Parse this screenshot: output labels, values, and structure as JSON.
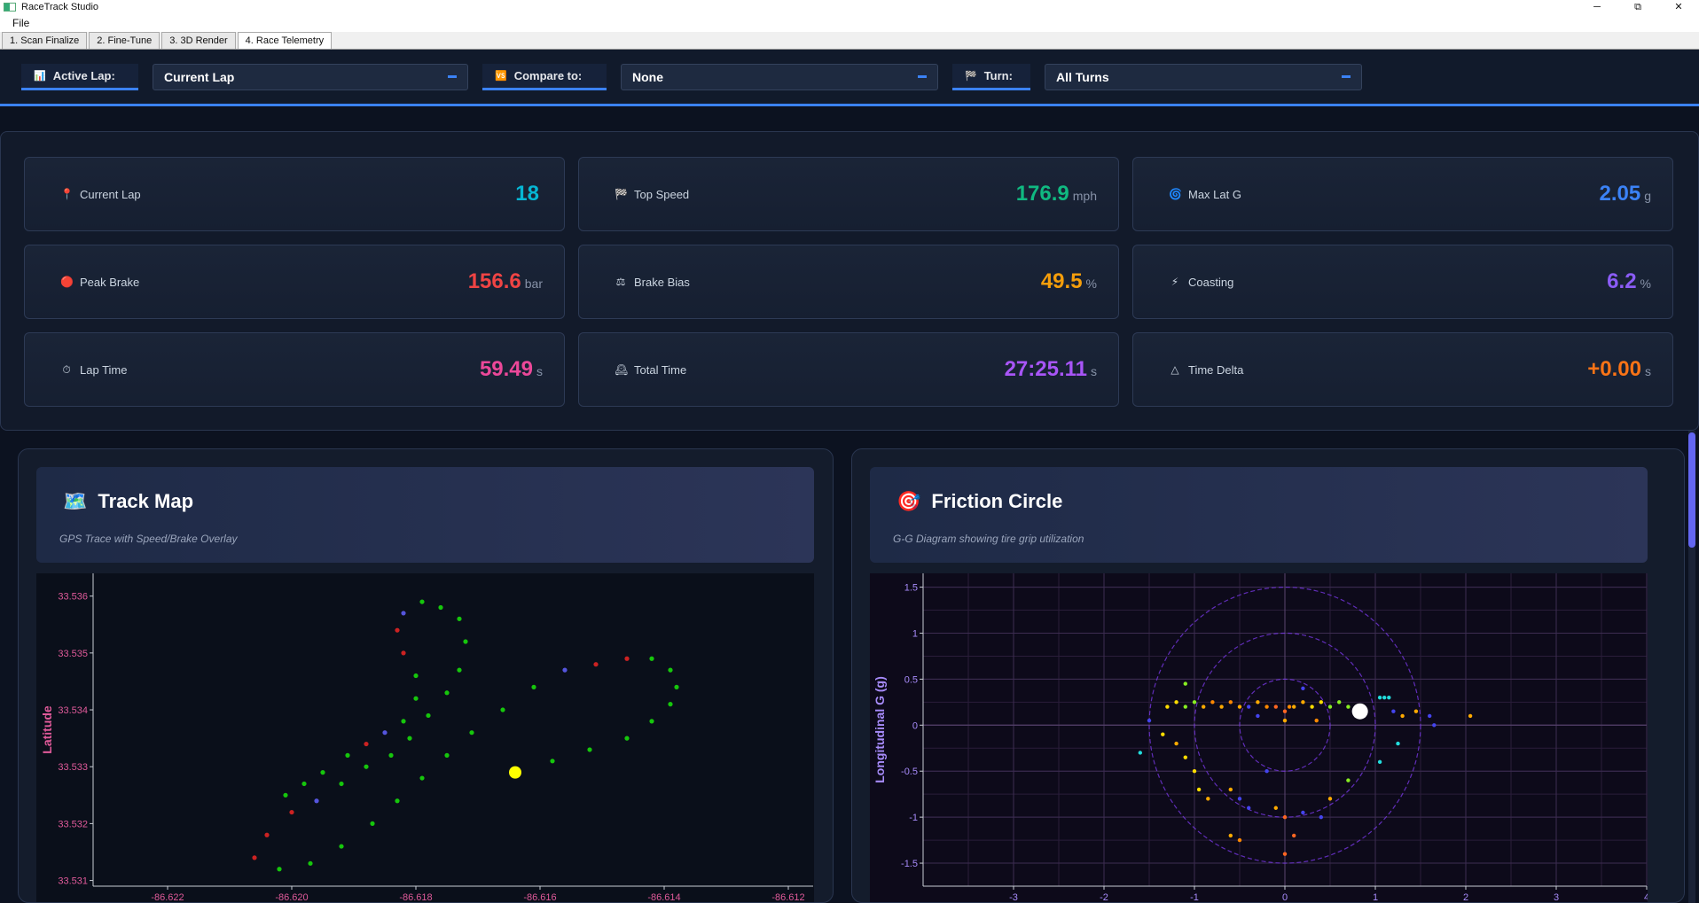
{
  "window": {
    "title": "RaceTrack Studio",
    "minimize": "─",
    "maximize": "⧉",
    "close": "✕"
  },
  "menu": {
    "file": "File"
  },
  "tabs": [
    {
      "label": "1. Scan  Finalize"
    },
    {
      "label": "2. Fine-Tune"
    },
    {
      "label": "3. 3D Render"
    },
    {
      "label": "4. Race Telemetry",
      "active": true
    }
  ],
  "filters": {
    "active_lap": {
      "icon": "📊",
      "label": "Active Lap:",
      "value": "Current Lap"
    },
    "compare": {
      "icon": "🆚",
      "label": "Compare to:",
      "value": "None"
    },
    "turn": {
      "icon": "🏁",
      "label": "Turn:",
      "value": "All Turns"
    }
  },
  "stats": [
    {
      "icon": "📍",
      "label": "Current Lap",
      "value": "18",
      "unit": "",
      "color": "#06b6d4"
    },
    {
      "icon": "🏁",
      "label": "Top Speed",
      "value": "176.9",
      "unit": "mph",
      "color": "#10b981"
    },
    {
      "icon": "🌀",
      "label": "Max Lat G",
      "value": "2.05",
      "unit": "g",
      "color": "#3b82f6"
    },
    {
      "icon": "🔴",
      "label": "Peak Brake",
      "value": "156.6",
      "unit": "bar",
      "color": "#ef4444"
    },
    {
      "icon": "⚖",
      "label": "Brake Bias",
      "value": "49.5",
      "unit": "%",
      "color": "#f59e0b"
    },
    {
      "icon": "⚡",
      "label": "Coasting",
      "value": "6.2",
      "unit": "%",
      "color": "#8b5cf6"
    },
    {
      "icon": "⏱",
      "label": "Lap Time",
      "value": "59.49",
      "unit": "s",
      "color": "#ec4899"
    },
    {
      "icon": "🕰",
      "label": "Total Time",
      "value": "27:25.11",
      "unit": "s",
      "color": "#a855f7"
    },
    {
      "icon": "△",
      "label": "Time Delta",
      "value": "+0.00",
      "unit": "s",
      "color": "#f97316"
    }
  ],
  "track_map": {
    "icon": "🗺️",
    "title": "Track Map",
    "subtitle": "GPS Trace with Speed/Brake Overlay",
    "chart_data": {
      "type": "scatter",
      "ylabel": "Latitude",
      "xlabel": "",
      "xlim": [
        -86.6232,
        -86.6116
      ],
      "ylim": [
        33.5309,
        33.5364
      ],
      "xticks": [
        "-86.622",
        "-86.620",
        "-86.618",
        "-86.616",
        "-86.614",
        "-86.612"
      ],
      "xtick_values": [
        -86.622,
        -86.62,
        -86.618,
        -86.616,
        -86.614,
        -86.612
      ],
      "yticks": [
        "33.531",
        "33.532",
        "33.533",
        "33.534",
        "33.535",
        "33.536"
      ],
      "ytick_values": [
        33.531,
        33.532,
        33.533,
        33.534,
        33.535,
        33.536
      ],
      "current_position": {
        "x": -86.6164,
        "y": 33.5329
      },
      "colors": {
        "throttle": "#16c60c",
        "brake": "#cc2222",
        "coast": "#5555dd",
        "marker": "#ffff00"
      },
      "trace": [
        [
          -86.6164,
          33.5329,
          "t"
        ],
        [
          -86.6158,
          33.5331,
          "t"
        ],
        [
          -86.6152,
          33.5333,
          "t"
        ],
        [
          -86.6146,
          33.5335,
          "t"
        ],
        [
          -86.6142,
          33.5338,
          "t"
        ],
        [
          -86.6139,
          33.5341,
          "t"
        ],
        [
          -86.6138,
          33.5344,
          "t"
        ],
        [
          -86.6139,
          33.5347,
          "t"
        ],
        [
          -86.6142,
          33.5349,
          "t"
        ],
        [
          -86.6146,
          33.5349,
          "b"
        ],
        [
          -86.6151,
          33.5348,
          "b"
        ],
        [
          -86.6156,
          33.5347,
          "c"
        ],
        [
          -86.6161,
          33.5344,
          "t"
        ],
        [
          -86.6166,
          33.534,
          "t"
        ],
        [
          -86.6171,
          33.5336,
          "t"
        ],
        [
          -86.6175,
          33.5332,
          "t"
        ],
        [
          -86.6179,
          33.5328,
          "t"
        ],
        [
          -86.6183,
          33.5324,
          "t"
        ],
        [
          -86.6187,
          33.532,
          "t"
        ],
        [
          -86.6192,
          33.5316,
          "t"
        ],
        [
          -86.6197,
          33.5313,
          "t"
        ],
        [
          -86.6202,
          33.5312,
          "t"
        ],
        [
          -86.6206,
          33.5314,
          "b"
        ],
        [
          -86.6204,
          33.5318,
          "b"
        ],
        [
          -86.62,
          33.5322,
          "b"
        ],
        [
          -86.6196,
          33.5324,
          "c"
        ],
        [
          -86.6192,
          33.5327,
          "t"
        ],
        [
          -86.6188,
          33.533,
          "t"
        ],
        [
          -86.6184,
          33.5332,
          "t"
        ],
        [
          -86.6181,
          33.5335,
          "t"
        ],
        [
          -86.6178,
          33.5339,
          "t"
        ],
        [
          -86.6175,
          33.5343,
          "t"
        ],
        [
          -86.6173,
          33.5347,
          "t"
        ],
        [
          -86.6172,
          33.5352,
          "t"
        ],
        [
          -86.6173,
          33.5356,
          "t"
        ],
        [
          -86.6176,
          33.5358,
          "t"
        ],
        [
          -86.6179,
          33.5359,
          "t"
        ],
        [
          -86.6182,
          33.5357,
          "c"
        ],
        [
          -86.6183,
          33.5354,
          "b"
        ],
        [
          -86.6182,
          33.535,
          "b"
        ],
        [
          -86.618,
          33.5346,
          "t"
        ],
        [
          -86.618,
          33.5342,
          "t"
        ],
        [
          -86.6182,
          33.5338,
          "t"
        ],
        [
          -86.6185,
          33.5336,
          "c"
        ],
        [
          -86.6188,
          33.5334,
          "b"
        ],
        [
          -86.6191,
          33.5332,
          "t"
        ],
        [
          -86.6195,
          33.5329,
          "t"
        ],
        [
          -86.6198,
          33.5327,
          "t"
        ],
        [
          -86.6201,
          33.5325,
          "t"
        ]
      ]
    }
  },
  "friction_circle": {
    "icon": "🎯",
    "title": "Friction Circle",
    "subtitle": "G-G Diagram showing tire grip utilization",
    "chart_data": {
      "type": "scatter",
      "ylabel": "Longitudinal G (g)",
      "xlabel": "",
      "xlim": [
        -4,
        4
      ],
      "ylim": [
        -1.75,
        1.65
      ],
      "xticks": [
        "-3",
        "-2",
        "-1",
        "0",
        "1",
        "2",
        "3",
        "4"
      ],
      "xtick_values": [
        -3,
        -2,
        -1,
        0,
        1,
        2,
        3,
        4
      ],
      "yticks": [
        "1.5",
        "1",
        "0.5",
        "0",
        "-0.5",
        "-1",
        "-1.5"
      ],
      "ytick_values": [
        1.5,
        1,
        0.5,
        0,
        -0.5,
        -1,
        -1.5
      ],
      "circles": [
        0.5,
        1.0,
        1.5
      ],
      "current_g": {
        "x": 0.83,
        "y": 0.15
      },
      "points": [
        [
          -1.3,
          0.2,
          "#ffdd00"
        ],
        [
          -1.2,
          0.25,
          "#ffdd00"
        ],
        [
          -1.1,
          0.2,
          "#88ee22"
        ],
        [
          -1.0,
          0.25,
          "#88ee22"
        ],
        [
          -0.9,
          0.2,
          "#ffaa00"
        ],
        [
          -0.8,
          0.25,
          "#ff8800"
        ],
        [
          -0.7,
          0.2,
          "#ffaa00"
        ],
        [
          -0.6,
          0.25,
          "#ff8800"
        ],
        [
          -0.5,
          0.2,
          "#ffaa00"
        ],
        [
          -0.4,
          0.2,
          "#4444ee"
        ],
        [
          -0.3,
          0.25,
          "#ffaa00"
        ],
        [
          -0.2,
          0.2,
          "#ff8800"
        ],
        [
          -0.1,
          0.2,
          "#ff6622"
        ],
        [
          0.0,
          0.15,
          "#ff6622"
        ],
        [
          0.05,
          0.2,
          "#ff8800"
        ],
        [
          0.1,
          0.2,
          "#ffaa00"
        ],
        [
          0.2,
          0.25,
          "#ffaa00"
        ],
        [
          0.3,
          0.2,
          "#ffdd00"
        ],
        [
          0.4,
          0.25,
          "#ffdd00"
        ],
        [
          0.5,
          0.2,
          "#88ee22"
        ],
        [
          0.6,
          0.25,
          "#88ee22"
        ],
        [
          0.7,
          0.2,
          "#88ee22"
        ],
        [
          1.1,
          0.3,
          "#22dddd"
        ],
        [
          1.15,
          0.3,
          "#22dddd"
        ],
        [
          1.05,
          0.3,
          "#22dddd"
        ],
        [
          1.2,
          0.15,
          "#4444ee"
        ],
        [
          1.3,
          0.1,
          "#ffaa00"
        ],
        [
          1.45,
          0.15,
          "#ffaa00"
        ],
        [
          1.6,
          0.1,
          "#4444ee"
        ],
        [
          2.05,
          0.1,
          "#ffaa00"
        ],
        [
          -1.6,
          -0.3,
          "#22dddd"
        ],
        [
          -1.35,
          -0.1,
          "#ffdd00"
        ],
        [
          -1.2,
          -0.2,
          "#ffaa00"
        ],
        [
          -1.1,
          -0.35,
          "#ffdd00"
        ],
        [
          -1.0,
          -0.5,
          "#ffdd00"
        ],
        [
          -0.95,
          -0.7,
          "#ffdd00"
        ],
        [
          -0.85,
          -0.8,
          "#ffaa00"
        ],
        [
          -0.6,
          -0.7,
          "#ffaa00"
        ],
        [
          -0.5,
          -0.8,
          "#4444ee"
        ],
        [
          -0.4,
          -0.9,
          "#4444ee"
        ],
        [
          -0.6,
          -1.2,
          "#ffaa00"
        ],
        [
          -0.5,
          -1.25,
          "#ff8800"
        ],
        [
          -0.1,
          -0.9,
          "#ffaa00"
        ],
        [
          0.0,
          -1.0,
          "#ff6622"
        ],
        [
          0.1,
          -1.2,
          "#ff6622"
        ],
        [
          0.2,
          -0.95,
          "#4444ee"
        ],
        [
          0.4,
          -1.0,
          "#4444ee"
        ],
        [
          0.5,
          -0.8,
          "#ffaa00"
        ],
        [
          0.7,
          -0.6,
          "#88ee22"
        ],
        [
          1.05,
          -0.4,
          "#22dddd"
        ],
        [
          1.25,
          -0.2,
          "#22dddd"
        ],
        [
          0.0,
          -1.4,
          "#ff6622"
        ],
        [
          -0.2,
          -0.5,
          "#4444ee"
        ],
        [
          0.2,
          0.4,
          "#4444ee"
        ],
        [
          -1.1,
          0.45,
          "#88ee22"
        ],
        [
          -0.3,
          0.1,
          "#4444ee"
        ],
        [
          0.0,
          0.05,
          "#ffaa00"
        ],
        [
          0.35,
          0.05,
          "#ff8800"
        ],
        [
          -1.5,
          0.05,
          "#4444ee"
        ],
        [
          1.65,
          0.0,
          "#4444ee"
        ]
      ]
    }
  }
}
